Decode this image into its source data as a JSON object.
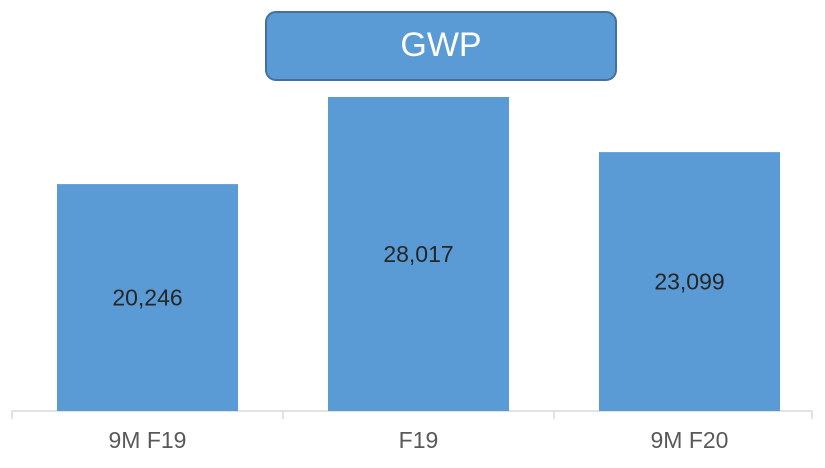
{
  "chart_data": {
    "type": "bar",
    "title": "GWP",
    "categories": [
      "9M F19",
      "F19",
      "9M F20"
    ],
    "values": [
      20246,
      28017,
      23099
    ],
    "value_labels": [
      "20,246",
      "28,017",
      "23,099"
    ],
    "color": "#5b9bd5"
  }
}
